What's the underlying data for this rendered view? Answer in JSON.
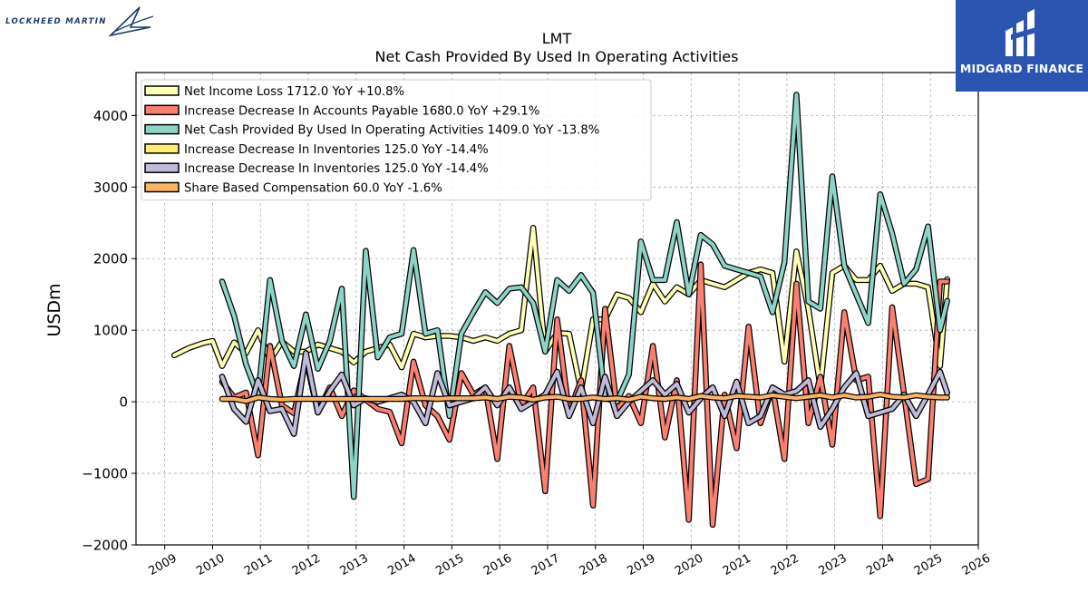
{
  "brand": {
    "logo_text": "LOCKHEED MARTIN"
  },
  "sponsor": {
    "name": "MIDGARD FINANCE"
  },
  "colors": {
    "net_income": "#ffffb3",
    "accounts_payable": "#fb8072",
    "operating_cash": "#8dd3c7",
    "inventories_a": "#ffed6f",
    "inventories_b": "#bebada",
    "share_comp": "#fdb462",
    "sponsor_bg": "#2c55b2"
  },
  "chart_data": {
    "type": "line",
    "title": "LMT",
    "subtitle": "Net Cash Provided By Used In Operating Activities",
    "xlabel": "",
    "ylabel": "USDm",
    "xlim": [
      2008.4,
      2026.0
    ],
    "ylim": [
      -2000,
      4600
    ],
    "yticks": [
      -2000,
      -1000,
      0,
      1000,
      2000,
      3000,
      4000
    ],
    "ytick_labels": [
      "−2000",
      "−1000",
      "0",
      "1000",
      "2000",
      "3000",
      "4000"
    ],
    "xticks": [
      2009,
      2010,
      2011,
      2012,
      2013,
      2014,
      2015,
      2016,
      2017,
      2018,
      2019,
      2020,
      2021,
      2022,
      2023,
      2024,
      2025,
      2026
    ],
    "xtick_labels": [
      "2009",
      "2010",
      "2011",
      "2012",
      "2013",
      "2014",
      "2015",
      "2016",
      "2017",
      "2018",
      "2019",
      "2020",
      "2021",
      "2022",
      "2023",
      "2024",
      "2025",
      "2026"
    ],
    "grid": true,
    "legend_position": "top-left",
    "series": [
      {
        "key": "net_income",
        "name": "Net Income Loss",
        "legend_value": "1712.0 YoY +10.8%",
        "x": [
          2009.2,
          2009.5,
          2009.8,
          2010.0,
          2010.2,
          2010.45,
          2010.7,
          2010.95,
          2011.2,
          2011.45,
          2011.7,
          2011.95,
          2012.2,
          2012.45,
          2012.7,
          2012.95,
          2013.2,
          2013.45,
          2013.7,
          2013.95,
          2014.2,
          2014.45,
          2014.7,
          2014.95,
          2015.2,
          2015.45,
          2015.7,
          2015.95,
          2016.2,
          2016.45,
          2016.7,
          2016.95,
          2017.2,
          2017.45,
          2017.7,
          2017.95,
          2018.2,
          2018.45,
          2018.7,
          2018.95,
          2019.2,
          2019.45,
          2019.7,
          2019.95,
          2020.2,
          2020.45,
          2020.7,
          2020.95,
          2021.2,
          2021.45,
          2021.7,
          2021.95,
          2022.2,
          2022.45,
          2022.7,
          2022.95,
          2023.2,
          2023.45,
          2023.7,
          2023.95,
          2024.2,
          2024.45,
          2024.7,
          2024.95,
          2025.2,
          2025.35
        ],
        "values": [
          650,
          750,
          820,
          850,
          500,
          830,
          680,
          1000,
          580,
          840,
          700,
          700,
          800,
          750,
          700,
          550,
          700,
          750,
          800,
          480,
          950,
          900,
          920,
          920,
          900,
          850,
          900,
          850,
          950,
          1000,
          2430,
          700,
          960,
          950,
          150,
          1150,
          1150,
          1500,
          1450,
          1250,
          1650,
          1400,
          1600,
          1500,
          1700,
          1650,
          1600,
          1700,
          1800,
          1850,
          1800,
          560,
          2100,
          1300,
          200,
          1800,
          1900,
          1700,
          1700,
          1900,
          1550,
          1650,
          1650,
          1600,
          500,
          1712
        ]
      },
      {
        "key": "accounts_payable",
        "name": "Increase Decrease In Accounts Payable",
        "legend_value": "1680.0 YoY +29.1%",
        "x": [
          2010.2,
          2010.45,
          2010.7,
          2010.95,
          2011.2,
          2011.45,
          2011.7,
          2011.95,
          2012.2,
          2012.45,
          2012.7,
          2012.95,
          2013.2,
          2013.45,
          2013.7,
          2013.95,
          2014.2,
          2014.45,
          2014.7,
          2014.95,
          2015.2,
          2015.45,
          2015.7,
          2015.95,
          2016.2,
          2016.45,
          2016.7,
          2016.95,
          2017.2,
          2017.45,
          2017.7,
          2017.95,
          2018.2,
          2018.45,
          2018.7,
          2018.95,
          2019.2,
          2019.45,
          2019.7,
          2019.95,
          2020.2,
          2020.45,
          2020.7,
          2020.95,
          2021.2,
          2021.45,
          2021.7,
          2021.95,
          2022.2,
          2022.45,
          2022.7,
          2022.95,
          2023.2,
          2023.45,
          2023.7,
          2023.95,
          2024.2,
          2024.45,
          2024.7,
          2024.95,
          2025.2,
          2025.35
        ],
        "values": [
          280,
          60,
          130,
          -750,
          780,
          -50,
          -160,
          600,
          -150,
          200,
          -200,
          160,
          30,
          -100,
          -140,
          -580,
          560,
          -50,
          -200,
          -530,
          400,
          100,
          200,
          -800,
          780,
          -50,
          200,
          -1250,
          1150,
          -150,
          300,
          -1450,
          1300,
          -100,
          80,
          -300,
          780,
          -500,
          300,
          -1650,
          1920,
          -1720,
          100,
          -650,
          1050,
          -300,
          200,
          -800,
          1650,
          -300,
          350,
          -600,
          1250,
          300,
          350,
          -1600,
          1320,
          100,
          -1150,
          -1080,
          1680,
          1680
        ]
      },
      {
        "key": "operating_cash",
        "name": "Net Cash Provided By Used In Operating Activities",
        "legend_value": "1409.0 YoY -13.8%",
        "x": [
          2010.2,
          2010.45,
          2010.7,
          2010.95,
          2011.2,
          2011.45,
          2011.7,
          2011.95,
          2012.2,
          2012.45,
          2012.7,
          2012.95,
          2013.2,
          2013.45,
          2013.7,
          2013.95,
          2014.2,
          2014.45,
          2014.7,
          2014.95,
          2015.2,
          2015.45,
          2015.7,
          2015.95,
          2016.2,
          2016.45,
          2016.7,
          2016.95,
          2017.2,
          2017.45,
          2017.7,
          2017.95,
          2018.2,
          2018.45,
          2018.7,
          2018.95,
          2019.2,
          2019.45,
          2019.7,
          2019.95,
          2020.2,
          2020.45,
          2020.7,
          2020.95,
          2021.2,
          2021.45,
          2021.7,
          2021.95,
          2022.2,
          2022.45,
          2022.7,
          2022.95,
          2023.2,
          2023.45,
          2023.7,
          2023.95,
          2024.2,
          2024.45,
          2024.7,
          2024.95,
          2025.2,
          2025.35
        ],
        "values": [
          1680,
          1200,
          520,
          80,
          1700,
          850,
          500,
          1220,
          460,
          850,
          1580,
          -1330,
          2110,
          620,
          900,
          950,
          2120,
          950,
          1000,
          -200,
          950,
          1250,
          1530,
          1380,
          1580,
          1600,
          1380,
          700,
          1700,
          1550,
          1770,
          1520,
          50,
          0,
          380,
          2240,
          1700,
          1700,
          2510,
          1500,
          2330,
          2200,
          1900,
          1850,
          1800,
          1750,
          1250,
          1950,
          4290,
          1400,
          1300,
          3150,
          1900,
          1500,
          1100,
          2900,
          2350,
          1650,
          1850,
          2450,
          1000,
          1409
        ]
      },
      {
        "key": "inventories_a",
        "name": "Increase Decrease In Inventories",
        "legend_value": "125.0 YoY -14.4%",
        "x": [
          2010.2,
          2010.45,
          2010.7,
          2010.95,
          2011.2,
          2011.45,
          2011.7,
          2011.95,
          2012.2,
          2012.45,
          2012.7,
          2012.95,
          2013.2,
          2013.45,
          2013.7,
          2013.95,
          2014.2,
          2014.45,
          2014.7,
          2014.95,
          2015.2,
          2015.45,
          2015.7,
          2015.95,
          2016.2,
          2016.45,
          2016.7,
          2016.95,
          2017.2,
          2017.45,
          2017.7,
          2017.95,
          2018.2,
          2018.45,
          2018.7,
          2018.95,
          2019.2,
          2019.45,
          2019.7,
          2019.95,
          2020.2,
          2020.45,
          2020.7,
          2020.95,
          2021.2,
          2021.45,
          2021.7,
          2021.95,
          2022.2,
          2022.45,
          2022.7,
          2022.95,
          2023.2,
          2023.45,
          2023.7,
          2023.95,
          2024.2,
          2024.45,
          2024.7,
          2024.95,
          2025.2,
          2025.35
        ],
        "values": [
          350,
          -100,
          -280,
          300,
          -130,
          -100,
          -450,
          680,
          -150,
          150,
          380,
          -50,
          50,
          0,
          50,
          100,
          0,
          -300,
          400,
          -50,
          0,
          50,
          200,
          -50,
          200,
          -100,
          0,
          100,
          420,
          -200,
          200,
          -300,
          350,
          -200,
          0,
          150,
          300,
          100,
          250,
          -150,
          50,
          200,
          -200,
          280,
          -300,
          -200,
          200,
          100,
          150,
          300,
          -350,
          -100,
          200,
          400,
          -200,
          -150,
          -100,
          100,
          -200,
          100,
          420,
          125
        ]
      },
      {
        "key": "inventories_b",
        "name": "Increase Decrease In Inventories",
        "legend_value": "125.0 YoY -14.4%",
        "x": [
          2010.2,
          2010.45,
          2010.7,
          2010.95,
          2011.2,
          2011.45,
          2011.7,
          2011.95,
          2012.2,
          2012.45,
          2012.7,
          2012.95,
          2013.2,
          2013.45,
          2013.7,
          2013.95,
          2014.2,
          2014.45,
          2014.7,
          2014.95,
          2015.2,
          2015.45,
          2015.7,
          2015.95,
          2016.2,
          2016.45,
          2016.7,
          2016.95,
          2017.2,
          2017.45,
          2017.7,
          2017.95,
          2018.2,
          2018.45,
          2018.7,
          2018.95,
          2019.2,
          2019.45,
          2019.7,
          2019.95,
          2020.2,
          2020.45,
          2020.7,
          2020.95,
          2021.2,
          2021.45,
          2021.7,
          2021.95,
          2022.2,
          2022.45,
          2022.7,
          2022.95,
          2023.2,
          2023.45,
          2023.7,
          2023.95,
          2024.2,
          2024.45,
          2024.7,
          2024.95,
          2025.2,
          2025.35
        ],
        "values": [
          350,
          -100,
          -280,
          300,
          -130,
          -100,
          -450,
          680,
          -150,
          150,
          380,
          -50,
          50,
          0,
          50,
          100,
          0,
          -300,
          400,
          -50,
          0,
          50,
          200,
          -50,
          200,
          -100,
          0,
          100,
          420,
          -200,
          200,
          -300,
          350,
          -200,
          0,
          150,
          300,
          100,
          250,
          -150,
          50,
          200,
          -200,
          280,
          -300,
          -200,
          200,
          100,
          150,
          300,
          -350,
          -100,
          200,
          400,
          -200,
          -150,
          -100,
          100,
          -200,
          100,
          420,
          125
        ]
      },
      {
        "key": "share_comp",
        "name": "Share Based Compensation",
        "legend_value": "60.0 YoY -1.6%",
        "x": [
          2010.2,
          2010.45,
          2010.7,
          2010.95,
          2011.2,
          2011.45,
          2011.7,
          2011.95,
          2012.2,
          2012.45,
          2012.7,
          2012.95,
          2013.2,
          2013.45,
          2013.7,
          2013.95,
          2014.2,
          2014.45,
          2014.7,
          2014.95,
          2015.2,
          2015.45,
          2015.7,
          2015.95,
          2016.2,
          2016.45,
          2016.7,
          2016.95,
          2017.2,
          2017.45,
          2017.7,
          2017.95,
          2018.2,
          2018.45,
          2018.7,
          2018.95,
          2019.2,
          2019.45,
          2019.7,
          2019.95,
          2020.2,
          2020.45,
          2020.7,
          2020.95,
          2021.2,
          2021.45,
          2021.7,
          2021.95,
          2022.2,
          2022.45,
          2022.7,
          2022.95,
          2023.2,
          2023.45,
          2023.7,
          2023.95,
          2024.2,
          2024.45,
          2024.7,
          2024.95,
          2025.2,
          2025.35
        ],
        "values": [
          40,
          40,
          10,
          60,
          40,
          30,
          40,
          40,
          40,
          40,
          40,
          40,
          40,
          40,
          40,
          40,
          50,
          50,
          40,
          50,
          50,
          50,
          60,
          40,
          70,
          60,
          30,
          60,
          70,
          40,
          40,
          60,
          40,
          50,
          30,
          70,
          50,
          40,
          60,
          40,
          80,
          60,
          50,
          80,
          70,
          60,
          90,
          70,
          50,
          70,
          90,
          60,
          90,
          60,
          70,
          100,
          70,
          60,
          90,
          70,
          60,
          60
        ]
      }
    ]
  }
}
